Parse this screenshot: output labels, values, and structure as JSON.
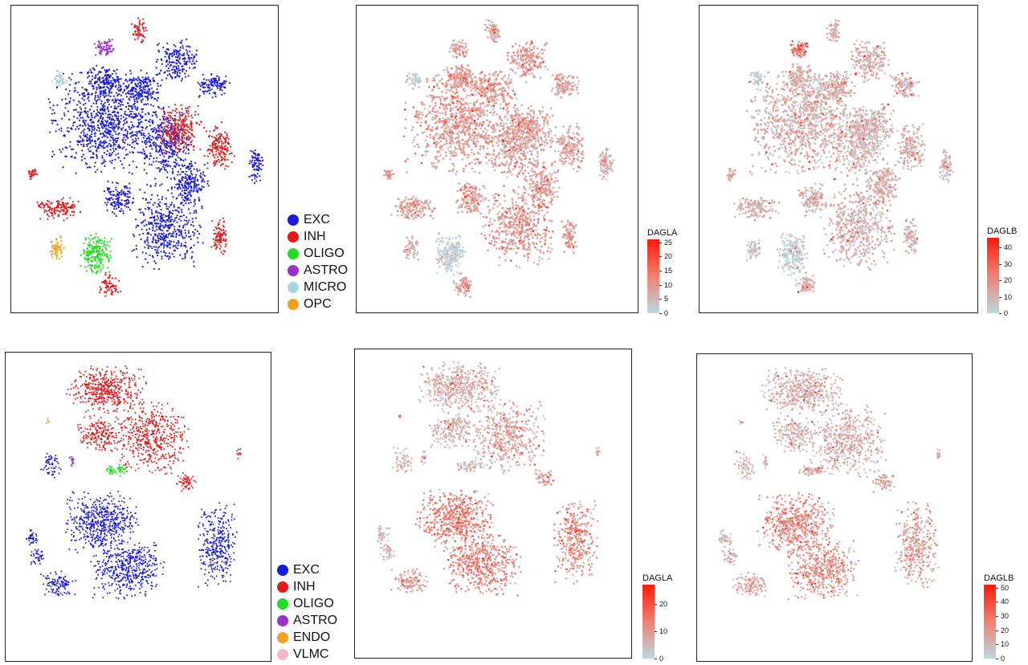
{
  "chart_data": [
    {
      "type": "scatter",
      "title": "",
      "xlabel": "",
      "ylabel": "",
      "color_by": "cell type",
      "legend_position": "right",
      "legend": [
        {
          "label": "EXC",
          "color": "#1a1adb"
        },
        {
          "label": "INH",
          "color": "#e01a1a"
        },
        {
          "label": "OLIGO",
          "color": "#22dd22"
        },
        {
          "label": "ASTRO",
          "color": "#9933cc"
        },
        {
          "label": "MICRO",
          "color": "#aad4e0"
        },
        {
          "label": "OPC",
          "color": "#f0a020"
        }
      ]
    },
    {
      "type": "scatter",
      "title": "",
      "color_by": "DAGLA",
      "colorbar": {
        "title": "DAGLA",
        "ticks": [
          "25",
          "20",
          "15",
          "10",
          "5",
          "0"
        ],
        "range": [
          0,
          26
        ],
        "colors": [
          "#b8d9e3",
          "#ff1a0a"
        ]
      }
    },
    {
      "type": "scatter",
      "title": "",
      "color_by": "DAGLB",
      "colorbar": {
        "title": "DAGLB",
        "ticks": [
          "40",
          "30",
          "20",
          "10",
          "0"
        ],
        "range": [
          0,
          46
        ],
        "colors": [
          "#b8d9e3",
          "#ff1a0a"
        ]
      }
    },
    {
      "type": "scatter",
      "title": "",
      "color_by": "cell type",
      "legend_position": "right",
      "legend": [
        {
          "label": "EXC",
          "color": "#1a1adb"
        },
        {
          "label": "INH",
          "color": "#e01a1a"
        },
        {
          "label": "OLIGO",
          "color": "#22dd22"
        },
        {
          "label": "ASTRO",
          "color": "#9933cc"
        },
        {
          "label": "ENDO",
          "color": "#f0a020"
        },
        {
          "label": "VLMC",
          "color": "#f4b8c8"
        }
      ]
    },
    {
      "type": "scatter",
      "title": "",
      "color_by": "DAGLA",
      "colorbar": {
        "title": "DAGLA",
        "ticks": [
          "20",
          "10",
          "0"
        ],
        "range": [
          0,
          27
        ],
        "colors": [
          "#b8d9e3",
          "#ff1a0a"
        ]
      }
    },
    {
      "type": "scatter",
      "title": "",
      "color_by": "DAGLB",
      "colorbar": {
        "title": "DAGLB",
        "ticks": [
          "50",
          "40",
          "30",
          "20",
          "10",
          "0"
        ],
        "range": [
          0,
          52
        ],
        "colors": [
          "#b8d9e3",
          "#ff1a0a"
        ]
      }
    }
  ]
}
